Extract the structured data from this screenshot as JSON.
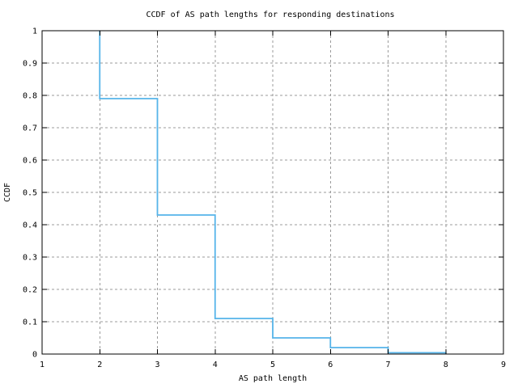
{
  "chart_data": {
    "type": "line",
    "subtype": "step-ccdf",
    "title": "CCDF of AS path lengths for responding destinations",
    "xlabel": "AS path length",
    "ylabel": "CCDF",
    "xlim": [
      1,
      9
    ],
    "ylim": [
      0,
      1
    ],
    "grid": true,
    "legend": "none",
    "xticks": [
      1,
      2,
      3,
      4,
      5,
      6,
      7,
      8,
      9
    ],
    "xtick_labels": [
      "1",
      "2",
      "3",
      "4",
      "5",
      "6",
      "7",
      "8",
      "9"
    ],
    "yticks": [
      0,
      0.1,
      0.2,
      0.3,
      0.4,
      0.5,
      0.6,
      0.7,
      0.8,
      0.9,
      1
    ],
    "ytick_labels": [
      "0",
      "0.1",
      "0.2",
      "0.3",
      "0.4",
      "0.5",
      "0.6",
      "0.7",
      "0.8",
      "0.9",
      "1"
    ],
    "series": [
      {
        "name": "CCDF of AS path length",
        "color": "#56b4e9",
        "points": [
          {
            "x": 1,
            "y": 1.0
          },
          {
            "x": 2,
            "y": 0.79
          },
          {
            "x": 3,
            "y": 0.43
          },
          {
            "x": 4,
            "y": 0.11
          },
          {
            "x": 5,
            "y": 0.05
          },
          {
            "x": 6,
            "y": 0.02
          },
          {
            "x": 7,
            "y": 0.004
          },
          {
            "x": 8,
            "y": 0.0
          }
        ]
      }
    ],
    "colors": {
      "curve": "#56b4e9",
      "grid": "#9b9b9b",
      "axis": "#000000",
      "background": "#ffffff"
    }
  }
}
